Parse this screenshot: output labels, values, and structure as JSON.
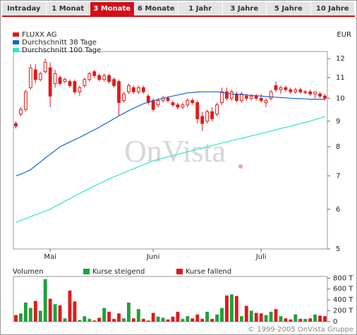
{
  "tabs": {
    "items": [
      "Intraday",
      "1 Monat",
      "3 Monate",
      "6 Monate",
      "1 Jahr",
      "3 Jahre",
      "5 Jahre",
      "10 Jahre"
    ],
    "active": 2
  },
  "watermark": "OnVista",
  "copyright": "© 1999-2005 OnVista Gruppe",
  "chart_data": [
    {
      "type": "candlestick",
      "unit": "EUR",
      "log_scale": true,
      "xlim": [
        -0.5,
        63.5
      ],
      "xticks": [
        {
          "value": 7,
          "label": "Mai"
        },
        {
          "value": 28,
          "label": "Juni"
        },
        {
          "value": 50,
          "label": "Juli"
        }
      ],
      "ylim": [
        5,
        12.4
      ],
      "yticks": [
        5,
        6,
        7,
        8,
        9,
        10,
        11,
        12
      ],
      "series": [
        {
          "name": "FLUXX AG",
          "color": "#e01a1a",
          "open": [
            8.9,
            9.3,
            9.5,
            10.5,
            11.4,
            10.9,
            11.3,
            11.5,
            10.7,
            11.0,
            10.8,
            10.8,
            10.8,
            10.3,
            10.6,
            10.9,
            11.3,
            11.1,
            10.9,
            11.1,
            10.9,
            10.8,
            9.9,
            10.3,
            10.5,
            10.3,
            10.5,
            10.1,
            9.9,
            9.7,
            9.9,
            10.0,
            9.8,
            9.7,
            9.6,
            9.7,
            9.9,
            9.8,
            9.2,
            9.0,
            9.4,
            9.3,
            9.8,
            10.3,
            10.0,
            10.2,
            9.9,
            10.1,
            10.0,
            10.1,
            10.0,
            9.8,
            10.0,
            10.6,
            10.4,
            10.5,
            10.4,
            10.3,
            10.4,
            10.3,
            10.3,
            10.2,
            10.2,
            10.1
          ],
          "high": [
            9.0,
            9.6,
            10.4,
            11.7,
            11.7,
            11.3,
            12.0,
            11.8,
            11.4,
            11.1,
            11.0,
            10.9,
            10.9,
            10.6,
            11.0,
            11.3,
            11.4,
            11.2,
            11.2,
            11.2,
            11.0,
            10.9,
            10.3,
            10.7,
            10.6,
            10.6,
            10.6,
            10.2,
            10.0,
            10.0,
            10.1,
            10.1,
            9.9,
            9.8,
            9.8,
            10.0,
            10.0,
            9.9,
            9.4,
            9.5,
            9.6,
            9.8,
            10.5,
            10.5,
            10.4,
            10.3,
            10.3,
            10.2,
            10.2,
            10.2,
            10.2,
            10.0,
            10.4,
            10.8,
            10.6,
            10.6,
            10.5,
            10.5,
            10.5,
            10.4,
            10.4,
            10.3,
            10.3,
            10.2
          ],
          "low": [
            8.7,
            9.2,
            9.4,
            10.4,
            10.7,
            10.8,
            11.2,
            9.6,
            10.5,
            10.6,
            10.7,
            10.5,
            10.2,
            10.1,
            10.5,
            10.8,
            11.0,
            10.8,
            10.8,
            10.7,
            10.5,
            9.2,
            9.8,
            10.2,
            10.2,
            10.2,
            10.2,
            9.7,
            9.4,
            9.6,
            9.8,
            9.8,
            9.6,
            9.5,
            9.5,
            9.6,
            9.7,
            8.9,
            8.6,
            8.9,
            9.0,
            9.2,
            9.7,
            9.9,
            9.9,
            9.8,
            9.8,
            9.9,
            9.9,
            9.9,
            9.8,
            9.6,
            9.9,
            10.3,
            10.2,
            10.3,
            10.2,
            10.2,
            10.2,
            10.2,
            10.1,
            10.0,
            10.0,
            9.9
          ],
          "close": [
            8.8,
            9.5,
            10.3,
            11.5,
            10.9,
            11.2,
            11.8,
            10.1,
            11.2,
            10.7,
            10.9,
            10.6,
            10.3,
            10.5,
            10.9,
            11.2,
            11.1,
            10.9,
            11.1,
            10.8,
            10.6,
            9.8,
            10.2,
            10.6,
            10.3,
            10.5,
            10.3,
            9.8,
            9.5,
            9.9,
            10.0,
            9.9,
            9.7,
            9.6,
            9.7,
            9.9,
            9.8,
            9.1,
            8.9,
            9.4,
            9.1,
            9.7,
            10.3,
            10.0,
            10.3,
            9.9,
            10.2,
            10.0,
            10.1,
            10.0,
            9.9,
            9.9,
            10.3,
            10.4,
            10.5,
            10.4,
            10.3,
            10.4,
            10.3,
            10.3,
            10.2,
            10.3,
            10.1,
            10.0
          ]
        },
        {
          "name": "Durchschnitt 38 Tage",
          "color": "#1464dc",
          "values": [
            7.0,
            7.05,
            7.12,
            7.2,
            7.33,
            7.46,
            7.6,
            7.73,
            7.86,
            8.0,
            8.09,
            8.18,
            8.26,
            8.35,
            8.45,
            8.55,
            8.65,
            8.75,
            8.87,
            8.98,
            9.1,
            9.22,
            9.33,
            9.45,
            9.55,
            9.65,
            9.75,
            9.82,
            9.88,
            9.95,
            10.0,
            10.05,
            10.1,
            10.15,
            10.2,
            10.25,
            10.27,
            10.29,
            10.3,
            10.3,
            10.3,
            10.3,
            10.27,
            10.23,
            10.2,
            10.18,
            10.17,
            10.15,
            10.13,
            10.12,
            10.1,
            10.08,
            10.07,
            10.05,
            10.03,
            10.02,
            10.0,
            9.99,
            9.98,
            9.97,
            9.96,
            9.96,
            9.95,
            9.95
          ]
        },
        {
          "name": "Durchschnitt 100 Tage",
          "color": "#2ee6c8",
          "values": [
            5.65,
            5.7,
            5.75,
            5.8,
            5.85,
            5.9,
            5.95,
            6.0,
            6.08,
            6.15,
            6.23,
            6.3,
            6.38,
            6.45,
            6.53,
            6.6,
            6.68,
            6.75,
            6.83,
            6.9,
            6.97,
            7.03,
            7.1,
            7.17,
            7.23,
            7.3,
            7.37,
            7.43,
            7.5,
            7.55,
            7.59,
            7.64,
            7.68,
            7.73,
            7.77,
            7.82,
            7.86,
            7.91,
            7.95,
            8.0,
            8.05,
            8.09,
            8.14,
            8.18,
            8.23,
            8.27,
            8.32,
            8.36,
            8.41,
            8.45,
            8.5,
            8.55,
            8.6,
            8.65,
            8.7,
            8.75,
            8.8,
            8.85,
            8.9,
            8.95,
            9.0,
            9.07,
            9.13,
            9.2
          ]
        }
      ]
    },
    {
      "type": "bar",
      "title": "Volumen",
      "ylim": [
        0,
        830
      ],
      "yticks": [
        0,
        {
          "value": 200,
          "label": "200 T"
        },
        {
          "value": 400,
          "label": "400 T"
        },
        {
          "value": 600,
          "label": "600 T"
        },
        {
          "value": 800,
          "label": "800 T"
        }
      ],
      "legend": [
        {
          "name": "Kurse steigend",
          "color": "#1fa03c"
        },
        {
          "name": "Kurse fallend",
          "color": "#e01a1a"
        }
      ],
      "values": [
        120,
        150,
        350,
        250,
        380,
        200,
        780,
        420,
        320,
        300,
        60,
        570,
        370,
        30,
        100,
        50,
        20,
        70,
        250,
        180,
        50,
        150,
        60,
        350,
        60,
        230,
        50,
        20,
        160,
        90,
        70,
        40,
        90,
        180,
        50,
        100,
        60,
        130,
        50,
        180,
        50,
        130,
        250,
        480,
        500,
        470,
        100,
        290,
        200,
        160,
        150,
        120,
        180,
        230,
        100,
        60,
        40,
        130,
        50,
        50,
        60,
        130,
        110,
        100
      ]
    }
  ]
}
